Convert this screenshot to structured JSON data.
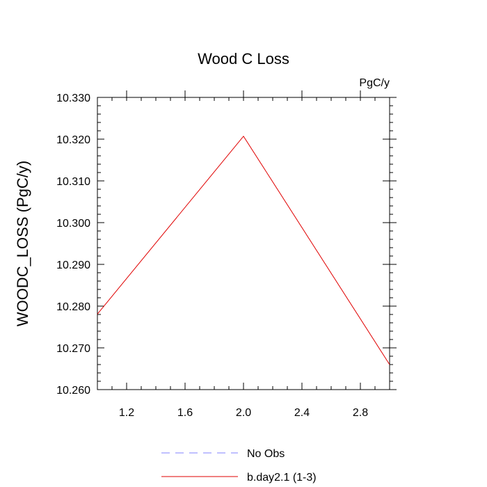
{
  "chart_data": {
    "type": "line",
    "title": "Wood C Loss",
    "units_label": "PgC/y",
    "xlabel": "",
    "ylabel": "WOODC_LOSS  (PgC/y)",
    "xlim": [
      1.0,
      3.0
    ],
    "ylim": [
      0.26,
      10.33
    ],
    "ylim_actual": [
      10.26,
      10.33
    ],
    "x_ticks": [
      1.2,
      1.6,
      2.0,
      2.4,
      2.8
    ],
    "x_tick_labels": [
      "1.2",
      "1.6",
      "2.0",
      "2.4",
      "2.8"
    ],
    "y_ticks": [
      10.26,
      10.27,
      10.28,
      10.29,
      10.3,
      10.31,
      10.32,
      10.33
    ],
    "y_tick_labels": [
      "10.260",
      "10.270",
      "10.280",
      "10.290",
      "10.300",
      "10.310",
      "10.320",
      "10.330"
    ],
    "grid": false,
    "legend_placement": "bottom",
    "series": [
      {
        "name": "b.day2.1 (1-3)",
        "color": "#e00000",
        "style": "solid",
        "x": [
          1.0,
          2.0,
          3.0
        ],
        "values": [
          10.2781,
          10.3207,
          10.266
        ]
      }
    ],
    "legend": [
      {
        "label": "No Obs",
        "color": "#8080ff",
        "style": "dashed"
      },
      {
        "label": "b.day2.1 (1-3)",
        "color": "#e00000",
        "style": "solid"
      }
    ]
  }
}
